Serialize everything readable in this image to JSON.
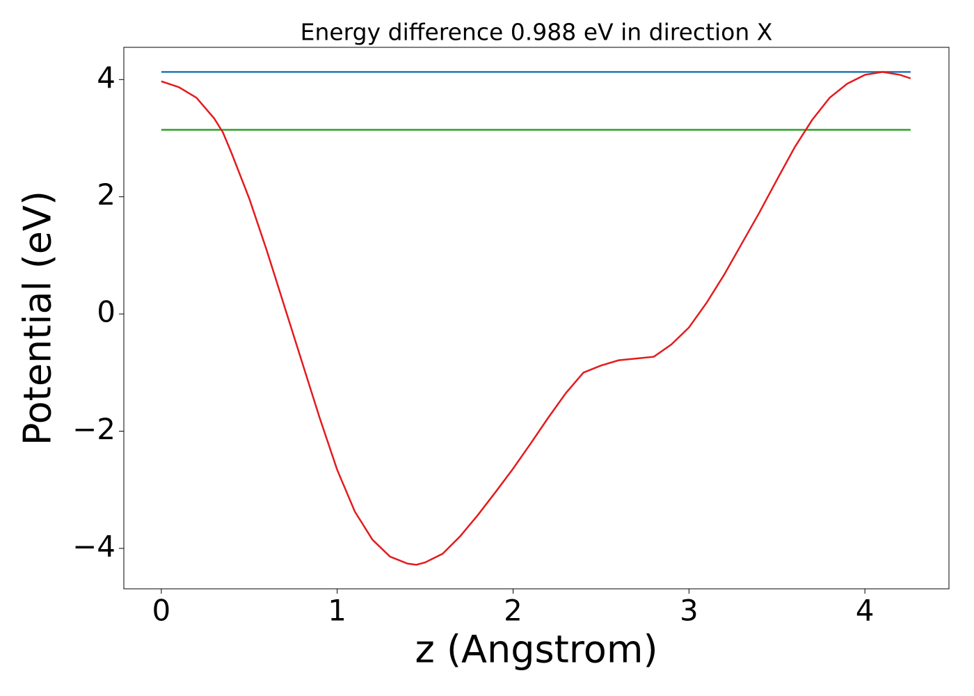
{
  "chart_data": {
    "type": "line",
    "title": "Energy difference 0.988 eV in direction X",
    "xlabel": "z (Angstrom)",
    "ylabel": "Potential (eV)",
    "xlim": [
      -0.213,
      4.478
    ],
    "ylim": [
      -4.69,
      4.55
    ],
    "xticks": [
      0,
      1,
      2,
      3,
      4
    ],
    "yticks": [
      {
        "value": -4,
        "label": "−4"
      },
      {
        "value": -2,
        "label": "−2"
      },
      0,
      2,
      4
    ],
    "series": [
      {
        "color": "#1f77b4",
        "x": [
          0,
          4.26
        ],
        "values": [
          4.13,
          4.13
        ]
      },
      {
        "color": "#2ca02c",
        "x": [
          0,
          4.26
        ],
        "values": [
          3.142,
          3.142
        ]
      },
      {
        "color": "#e41a1c",
        "x": [
          0,
          0.1,
          0.2,
          0.3,
          0.35,
          0.4,
          0.5,
          0.6,
          0.7,
          0.8,
          0.9,
          1.0,
          1.1,
          1.2,
          1.3,
          1.4,
          1.45,
          1.5,
          1.6,
          1.7,
          1.8,
          1.9,
          2.0,
          2.1,
          2.2,
          2.3,
          2.4,
          2.5,
          2.6,
          2.7,
          2.8,
          2.9,
          3.0,
          3.1,
          3.2,
          3.3,
          3.4,
          3.5,
          3.6,
          3.7,
          3.8,
          3.9,
          4.0,
          4.1,
          4.2,
          4.26
        ],
        "values": [
          3.97,
          3.87,
          3.69,
          3.34,
          3.1,
          2.74,
          1.97,
          1.08,
          0.13,
          -0.82,
          -1.77,
          -2.66,
          -3.37,
          -3.85,
          -4.14,
          -4.26,
          -4.28,
          -4.24,
          -4.09,
          -3.79,
          -3.43,
          -3.04,
          -2.64,
          -2.21,
          -1.77,
          -1.35,
          -1.0,
          -0.88,
          -0.79,
          -0.76,
          -0.73,
          -0.52,
          -0.23,
          0.19,
          0.67,
          1.2,
          1.73,
          2.29,
          2.84,
          3.31,
          3.69,
          3.93,
          4.08,
          4.13,
          4.08,
          4.02
        ]
      }
    ]
  }
}
